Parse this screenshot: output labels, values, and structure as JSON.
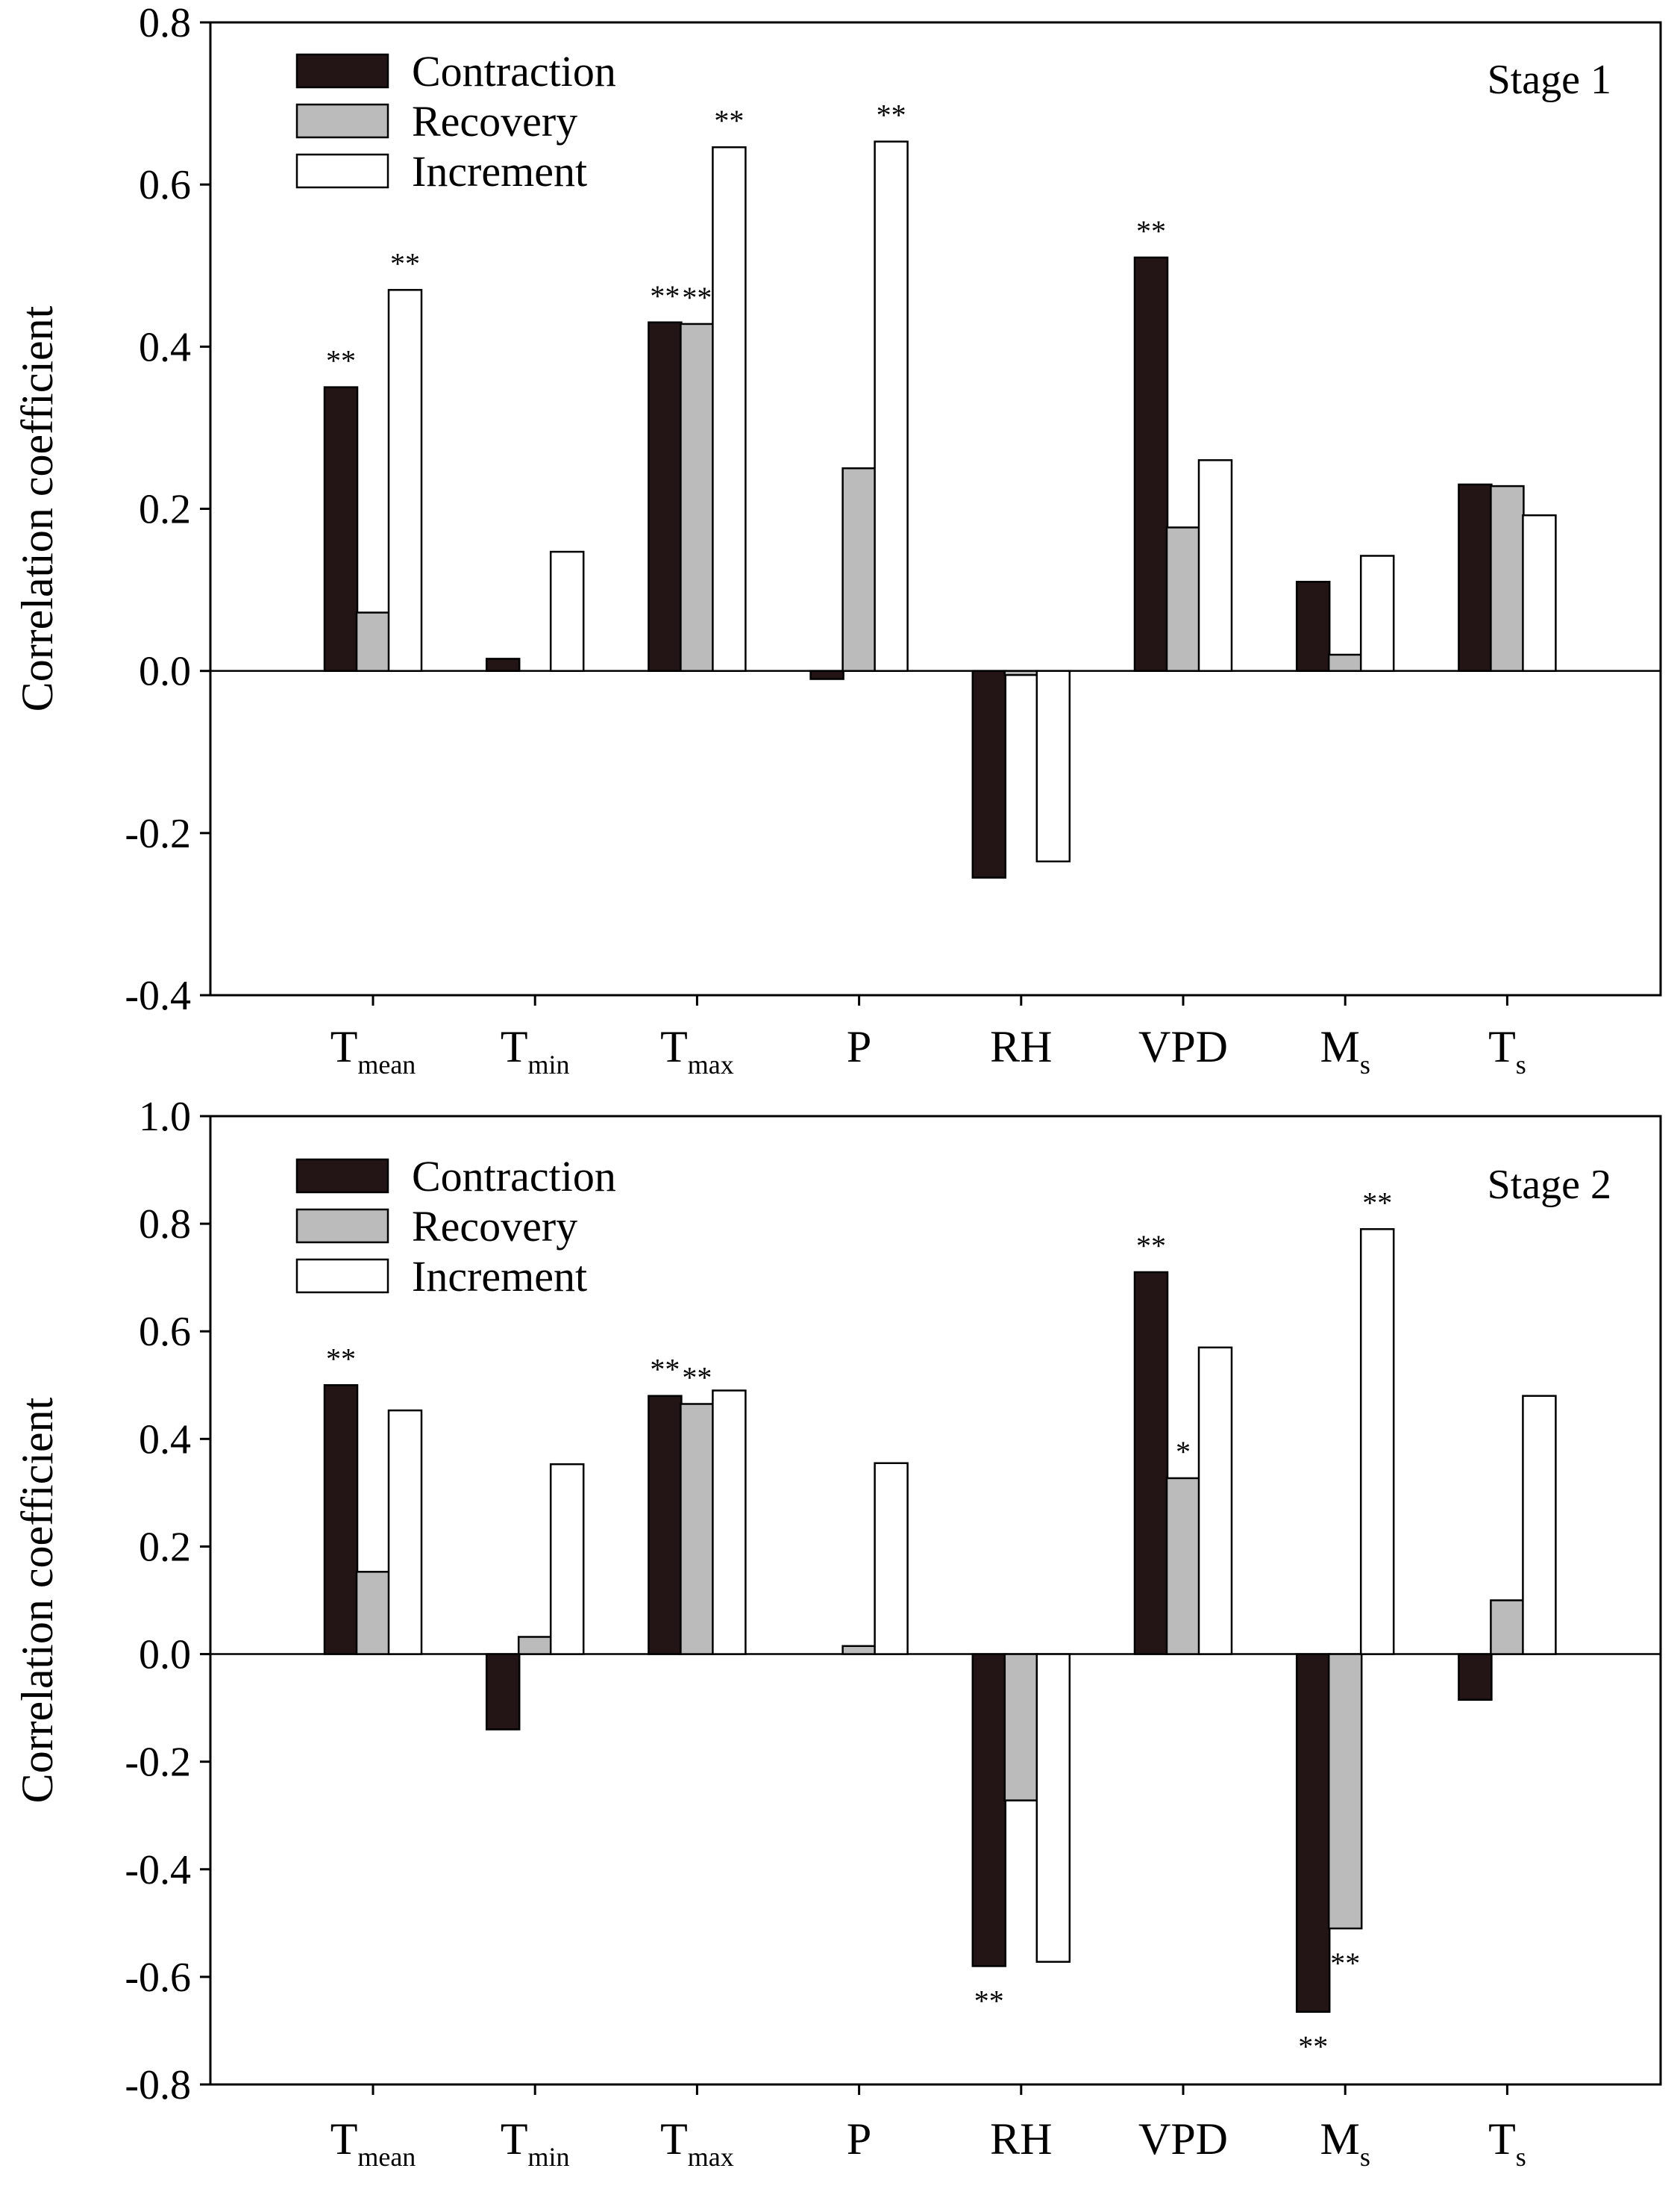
{
  "colors": {
    "contraction": "#231516",
    "recovery": "#bbbbbb",
    "increment": "#ffffff",
    "stroke": "#000000"
  },
  "chart_data": [
    {
      "type": "bar",
      "title": "",
      "panel_label": "Stage 1",
      "xlabel": "",
      "ylabel": "Correlation coefficient",
      "ylim": [
        -0.4,
        0.8
      ],
      "yticks": [
        "-0.4",
        "-0.2",
        "0.0",
        "0.2",
        "0.4",
        "0.6",
        "0.8"
      ],
      "categories": [
        {
          "main": "T",
          "sub": "mean"
        },
        {
          "main": "T",
          "sub": "min"
        },
        {
          "main": "T",
          "sub": "max"
        },
        {
          "main": "P",
          "sub": ""
        },
        {
          "main": "RH",
          "sub": ""
        },
        {
          "main": "VPD",
          "sub": ""
        },
        {
          "main": "M",
          "sub": "s"
        },
        {
          "main": "T",
          "sub": "s"
        }
      ],
      "legend": [
        "Contraction",
        "Recovery",
        "Increment"
      ],
      "series": [
        {
          "name": "Contraction",
          "values": [
            0.35,
            0.015,
            0.43,
            -0.01,
            -0.255,
            0.51,
            0.11,
            0.23
          ]
        },
        {
          "name": "Recovery",
          "values": [
            0.072,
            0.0,
            0.428,
            0.25,
            -0.005,
            0.177,
            0.02,
            0.228
          ]
        },
        {
          "name": "Increment",
          "values": [
            0.47,
            0.147,
            0.646,
            0.653,
            -0.235,
            0.26,
            0.142,
            0.192
          ]
        }
      ],
      "significance": [
        [
          "**",
          "",
          "**"
        ],
        [
          "",
          "",
          ""
        ],
        [
          "**",
          "**",
          "**"
        ],
        [
          "",
          "",
          "**"
        ],
        [
          "",
          "",
          ""
        ],
        [
          "**",
          "",
          ""
        ],
        [
          "",
          "",
          ""
        ],
        [
          "",
          "",
          ""
        ]
      ]
    },
    {
      "type": "bar",
      "title": "",
      "panel_label": "Stage 2",
      "xlabel": "",
      "ylabel": "Correlation coefficient",
      "ylim": [
        -0.8,
        1.0
      ],
      "yticks": [
        "-0.8",
        "-0.6",
        "-0.4",
        "-0.2",
        "0.0",
        "0.2",
        "0.4",
        "0.6",
        "0.8",
        "1.0"
      ],
      "categories": [
        {
          "main": "T",
          "sub": "mean"
        },
        {
          "main": "T",
          "sub": "min"
        },
        {
          "main": "T",
          "sub": "max"
        },
        {
          "main": "P",
          "sub": ""
        },
        {
          "main": "RH",
          "sub": ""
        },
        {
          "main": "VPD",
          "sub": ""
        },
        {
          "main": "M",
          "sub": "s"
        },
        {
          "main": "T",
          "sub": "s"
        }
      ],
      "legend": [
        "Contraction",
        "Recovery",
        "Increment"
      ],
      "series": [
        {
          "name": "Contraction",
          "values": [
            0.5,
            -0.14,
            0.48,
            0.0,
            -0.58,
            0.71,
            -0.665,
            -0.085
          ]
        },
        {
          "name": "Recovery",
          "values": [
            0.153,
            0.032,
            0.465,
            0.015,
            -0.272,
            0.327,
            -0.51,
            0.1
          ]
        },
        {
          "name": "Increment",
          "values": [
            0.453,
            0.353,
            0.49,
            0.355,
            -0.572,
            0.57,
            0.79,
            0.48
          ]
        }
      ],
      "significance": [
        [
          "**",
          "",
          ""
        ],
        [
          "",
          "",
          ""
        ],
        [
          "**",
          "**",
          ""
        ],
        [
          "",
          "",
          ""
        ],
        [
          "**",
          "",
          ""
        ],
        [
          "**",
          "*",
          ""
        ],
        [
          "**",
          "**",
          "**"
        ],
        [
          "",
          "",
          ""
        ]
      ]
    }
  ]
}
